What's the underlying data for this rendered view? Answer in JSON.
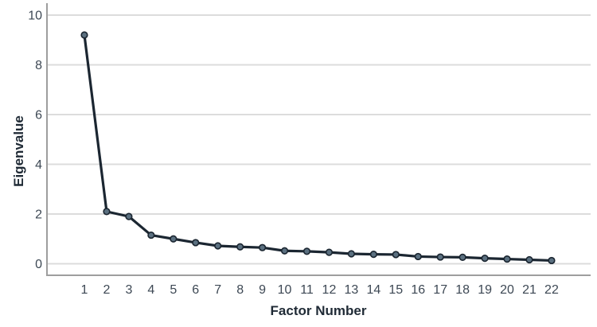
{
  "chart_data": {
    "type": "line",
    "title": "",
    "xlabel": "Factor Number",
    "ylabel": "Eigenvalue",
    "categories": [
      1,
      2,
      3,
      4,
      5,
      6,
      7,
      8,
      9,
      10,
      11,
      12,
      13,
      14,
      15,
      16,
      17,
      18,
      19,
      20,
      21,
      22
    ],
    "values": [
      9.2,
      2.1,
      1.9,
      1.15,
      1.0,
      0.85,
      0.72,
      0.68,
      0.65,
      0.52,
      0.5,
      0.46,
      0.4,
      0.38,
      0.37,
      0.29,
      0.27,
      0.26,
      0.22,
      0.19,
      0.16,
      0.13
    ],
    "yticks": [
      0,
      2,
      4,
      6,
      8,
      10
    ],
    "ylim": [
      0,
      10.5
    ],
    "grid": "horizontal-only",
    "legend": "none",
    "marker": "circle",
    "colors": {
      "line": "#1b2631",
      "marker_fill": "#5b7080",
      "marker_stroke": "#1b2631",
      "gridline": "#dcdcdc",
      "axis_line": "#9e9e9e",
      "tick_label": "#3d4854",
      "axis_title": "#1f2a35",
      "background": "#ffffff"
    }
  }
}
